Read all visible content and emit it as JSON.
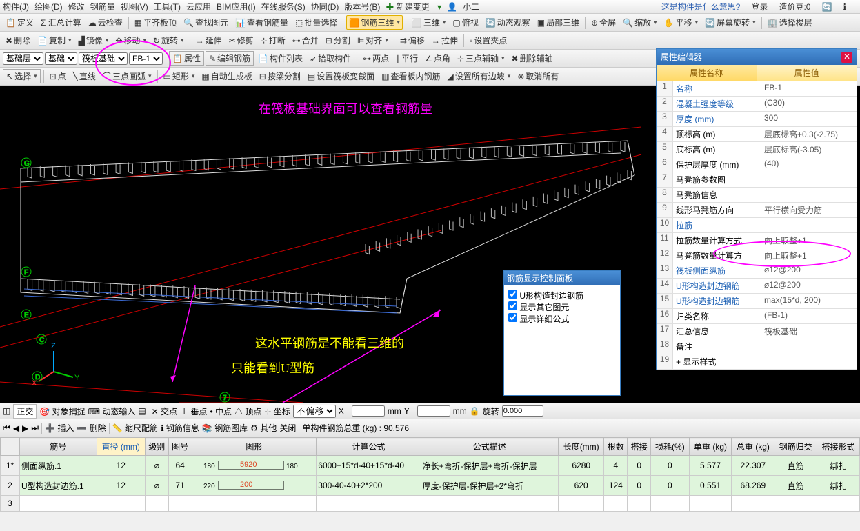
{
  "menubar": {
    "items": [
      "构件(J)",
      "绘图(D)",
      "修改",
      "钢筋量",
      "视图(V)",
      "工具(T)",
      "云应用",
      "BIM应用(I)",
      "在线服务(S)",
      "协同(D)",
      "版本号(B)"
    ],
    "new": "新建变更",
    "user": "小二",
    "faq": "这是构件是什么意思?",
    "login": "登录",
    "coins": "造价豆:0"
  },
  "tb1": {
    "items": [
      "定义",
      "Σ 汇总计算",
      "云检查",
      "平齐板顶",
      "查找图元",
      "查看钢筋量",
      "批量选择"
    ],
    "view3d": "钢筋三维",
    "viewmode": "三维",
    "look": "俯视",
    "dyn": "动态观察",
    "local3d": "局部三维",
    "full": "全屏",
    "zoom": "缩放",
    "pan": "平移",
    "rot": "屏幕旋转",
    "floor": "选择楼层"
  },
  "tb2": {
    "del": "删除",
    "copy": "复制",
    "mirror": "镜像",
    "move": "移动",
    "rotate": "旋转",
    "extend": "延伸",
    "trim": "修剪",
    "break": "打断",
    "join": "合并",
    "split": "分割",
    "align": "对齐",
    "offset": "偏移",
    "stretch": "拉伸",
    "pts": "设置夹点"
  },
  "tb3": {
    "cat": "基础层",
    "sub": "基础",
    "type": "筏板基础",
    "code": "FB-1",
    "attr": "属性",
    "edit": "编辑钢筋",
    "list": "构件列表",
    "pick": "拾取构件",
    "p2": "两点",
    "par": "平行",
    "ang": "点角",
    "p3": "三点辅轴",
    "delaux": "删除辅轴"
  },
  "tb4": {
    "sel": "选择",
    "pt": "点",
    "line": "直线",
    "arc": "三点画弧",
    "rect": "矩形",
    "auto": "自动生成板",
    "beam": "按梁分割",
    "section": "设置筏板变截面",
    "inner": "查看板内钢筋",
    "edge": "设置所有边坡",
    "cancel": "取消所有"
  },
  "annotations": {
    "top": "在筏板基础界面可以查看钢筋量",
    "mid": "这水平钢筋是不能看三维的",
    "bot": "只能看到U型筋"
  },
  "ctrlpanel": {
    "title": "钢筋显示控制面板",
    "items": [
      "U形构造封边钢筋",
      "显示其它图元",
      "显示详细公式"
    ]
  },
  "props": {
    "title": "属性编辑器",
    "h1": "属性名称",
    "h2": "属性值",
    "rows": [
      {
        "n": 1,
        "k": "名称",
        "v": "FB-1",
        "blue": true
      },
      {
        "n": 2,
        "k": "混凝土强度等级",
        "v": "(C30)",
        "blue": true
      },
      {
        "n": 3,
        "k": "厚度 (mm)",
        "v": "300",
        "blue": true
      },
      {
        "n": 4,
        "k": "顶标高 (m)",
        "v": "层底标高+0.3(-2.75)"
      },
      {
        "n": 5,
        "k": "底标高 (m)",
        "v": "层底标高(-3.05)"
      },
      {
        "n": 6,
        "k": "保护层厚度 (mm)",
        "v": "(40)"
      },
      {
        "n": 7,
        "k": "马凳筋参数图",
        "v": ""
      },
      {
        "n": 8,
        "k": "马凳筋信息",
        "v": ""
      },
      {
        "n": 9,
        "k": "线形马凳筋方向",
        "v": "平行横向受力筋"
      },
      {
        "n": 10,
        "k": "拉筋",
        "v": "",
        "blue": true
      },
      {
        "n": 11,
        "k": "拉筋数量计算方式",
        "v": "向上取整+1"
      },
      {
        "n": 12,
        "k": "马凳筋数量计算方",
        "v": "向上取整+1"
      },
      {
        "n": 13,
        "k": "筏板侧面纵筋",
        "v": "⌀12@200",
        "blue": true
      },
      {
        "n": 14,
        "k": "U形构造封边钢筋",
        "v": "⌀12@200",
        "blue": true
      },
      {
        "n": 15,
        "k": "U形构造封边钢筋",
        "v": "max(15*d, 200)",
        "blue": true
      },
      {
        "n": 16,
        "k": "归类名称",
        "v": "(FB-1)"
      },
      {
        "n": 17,
        "k": "汇总信息",
        "v": "筏板基础"
      },
      {
        "n": 18,
        "k": "备注",
        "v": ""
      },
      {
        "n": 19,
        "k": "+ 显示样式",
        "v": ""
      }
    ]
  },
  "status": {
    "ortho": "正交",
    "snap": "对象捕捉",
    "dyn": "动态输入",
    "int": "交点",
    "perp": "垂点",
    "mid": "中点",
    "apex": "顶点",
    "coord": "坐标",
    "offset": "不偏移",
    "x": "X=",
    "xv": "",
    "mm": "mm",
    "y": "Y=",
    "yv": "",
    "rot": "旋转",
    "rotv": "0.000"
  },
  "btb": {
    "nav": [
      "⏮",
      "◀",
      "▶",
      "⏭"
    ],
    "ins": "插入",
    "del": "删除",
    "scale": "缩尺配筋",
    "info": "钢筋信息",
    "lib": "钢筋图库",
    "other": "其他",
    "close": "关闭",
    "wt": "单构件钢筋总重 (kg) : 90.576"
  },
  "table": {
    "cols": [
      "筋号",
      "直径 (mm)",
      "级别",
      "图号",
      "图形",
      "计算公式",
      "公式描述",
      "长度(mm)",
      "根数",
      "搭接",
      "损耗(%)",
      "单重 (kg)",
      "总重 (kg)",
      "钢筋归类",
      "搭接形式"
    ],
    "rows": [
      {
        "n": "1*",
        "c": [
          "侧面纵筋.1",
          "12",
          "⌀",
          "64",
          "",
          "6000+15*d-40+15*d-40",
          "净长+弯折-保护层+弯折-保护层",
          "6280",
          "4",
          "0",
          "0",
          "5.577",
          "22.307",
          "直筋",
          "绑扎"
        ],
        "shape": {
          "L": 180,
          "R": 180,
          "mid": "5920",
          "midcolor": "#d42"
        }
      },
      {
        "n": "2",
        "c": [
          "U型构造封边筋.1",
          "12",
          "⌀",
          "71",
          "",
          "300-40-40+2*200",
          "厚度-保护层-保护层+2*弯折",
          "620",
          "124",
          "0",
          "0",
          "0.551",
          "68.269",
          "直筋",
          "绑扎"
        ],
        "shape": {
          "L": 220,
          "mid": "200",
          "midcolor": "#d42"
        }
      },
      {
        "n": "3",
        "c": [
          "",
          "",
          "",
          "",
          "",
          "",
          "",
          "",
          "",
          "",
          "",
          "",
          "",
          "",
          ""
        ],
        "empty": true
      }
    ]
  },
  "axes": {
    "x": "X",
    "y": "Y",
    "z": "Z",
    "labels": [
      "C",
      "F",
      "E",
      "D",
      "G",
      "7"
    ]
  }
}
